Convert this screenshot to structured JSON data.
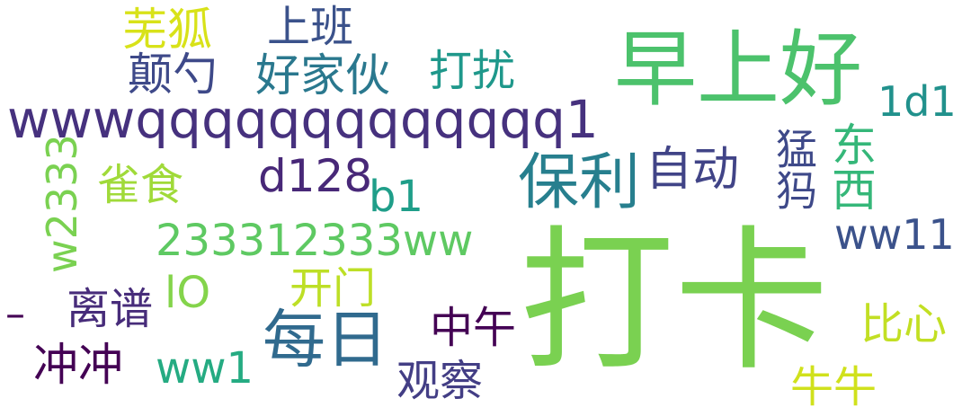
{
  "words": [
    {
      "id": "daka",
      "text": "打卡",
      "color": "#7ad151"
    },
    {
      "id": "zaoshanghao",
      "text": "早上好",
      "color": "#4cc26c"
    },
    {
      "id": "wwwq",
      "text": "wwwqqqqqqqqqqqqq1",
      "color": "#46317e"
    },
    {
      "id": "baoli",
      "text": "保利",
      "color": "#277f8e"
    },
    {
      "id": "meiri",
      "text": "每日",
      "color": "#306a8e"
    },
    {
      "id": "n233",
      "text": "233312333ww",
      "color": "#5ec962"
    },
    {
      "id": "shangban",
      "text": "上班",
      "color": "#3b528b"
    },
    {
      "id": "wuhu",
      "text": "芜狐",
      "color": "#d8e219"
    },
    {
      "id": "haojiahuo",
      "text": "好家伙",
      "color": "#2a788e"
    },
    {
      "id": "dianshao",
      "text": "颠勺",
      "color": "#3e4989"
    },
    {
      "id": "darao",
      "text": "打扰",
      "color": "#1f988b"
    },
    {
      "id": "d1",
      "text": "1d1",
      "color": "#21918c"
    },
    {
      "id": "d128",
      "text": "d128",
      "color": "#482878"
    },
    {
      "id": "zidong",
      "text": "自动",
      "color": "#414487"
    },
    {
      "id": "b1",
      "text": "b1",
      "color": "#1f9e89"
    },
    {
      "id": "queshi",
      "text": "雀食",
      "color": "#a0da39"
    },
    {
      "id": "w2333",
      "text": "w2333",
      "color": "#7ad151"
    },
    {
      "id": "mengma",
      "text": "猛犸",
      "color": "#3e4989"
    },
    {
      "id": "dongxi",
      "text": "东西",
      "color": "#35b779"
    },
    {
      "id": "ww11",
      "text": "ww11",
      "color": "#3b528b"
    },
    {
      "id": "lO",
      "text": "lO",
      "color": "#84d44b"
    },
    {
      "id": "kaimen",
      "text": "开门",
      "color": "#bddf26"
    },
    {
      "id": "lipu",
      "text": "离谱",
      "color": "#472c7a"
    },
    {
      "id": "dash",
      "text": "–",
      "color": "#440154"
    },
    {
      "id": "zhongwu",
      "text": "中午",
      "color": "#440154"
    },
    {
      "id": "bixin",
      "text": "比心",
      "color": "#c2df23"
    },
    {
      "id": "chongchong",
      "text": "冲冲",
      "color": "#440154"
    },
    {
      "id": "ww1",
      "text": "ww1",
      "color": "#25ab82"
    },
    {
      "id": "guancha",
      "text": "观察",
      "color": "#433e85"
    },
    {
      "id": "niuniu",
      "text": "牛牛",
      "color": "#d0e11c"
    }
  ]
}
